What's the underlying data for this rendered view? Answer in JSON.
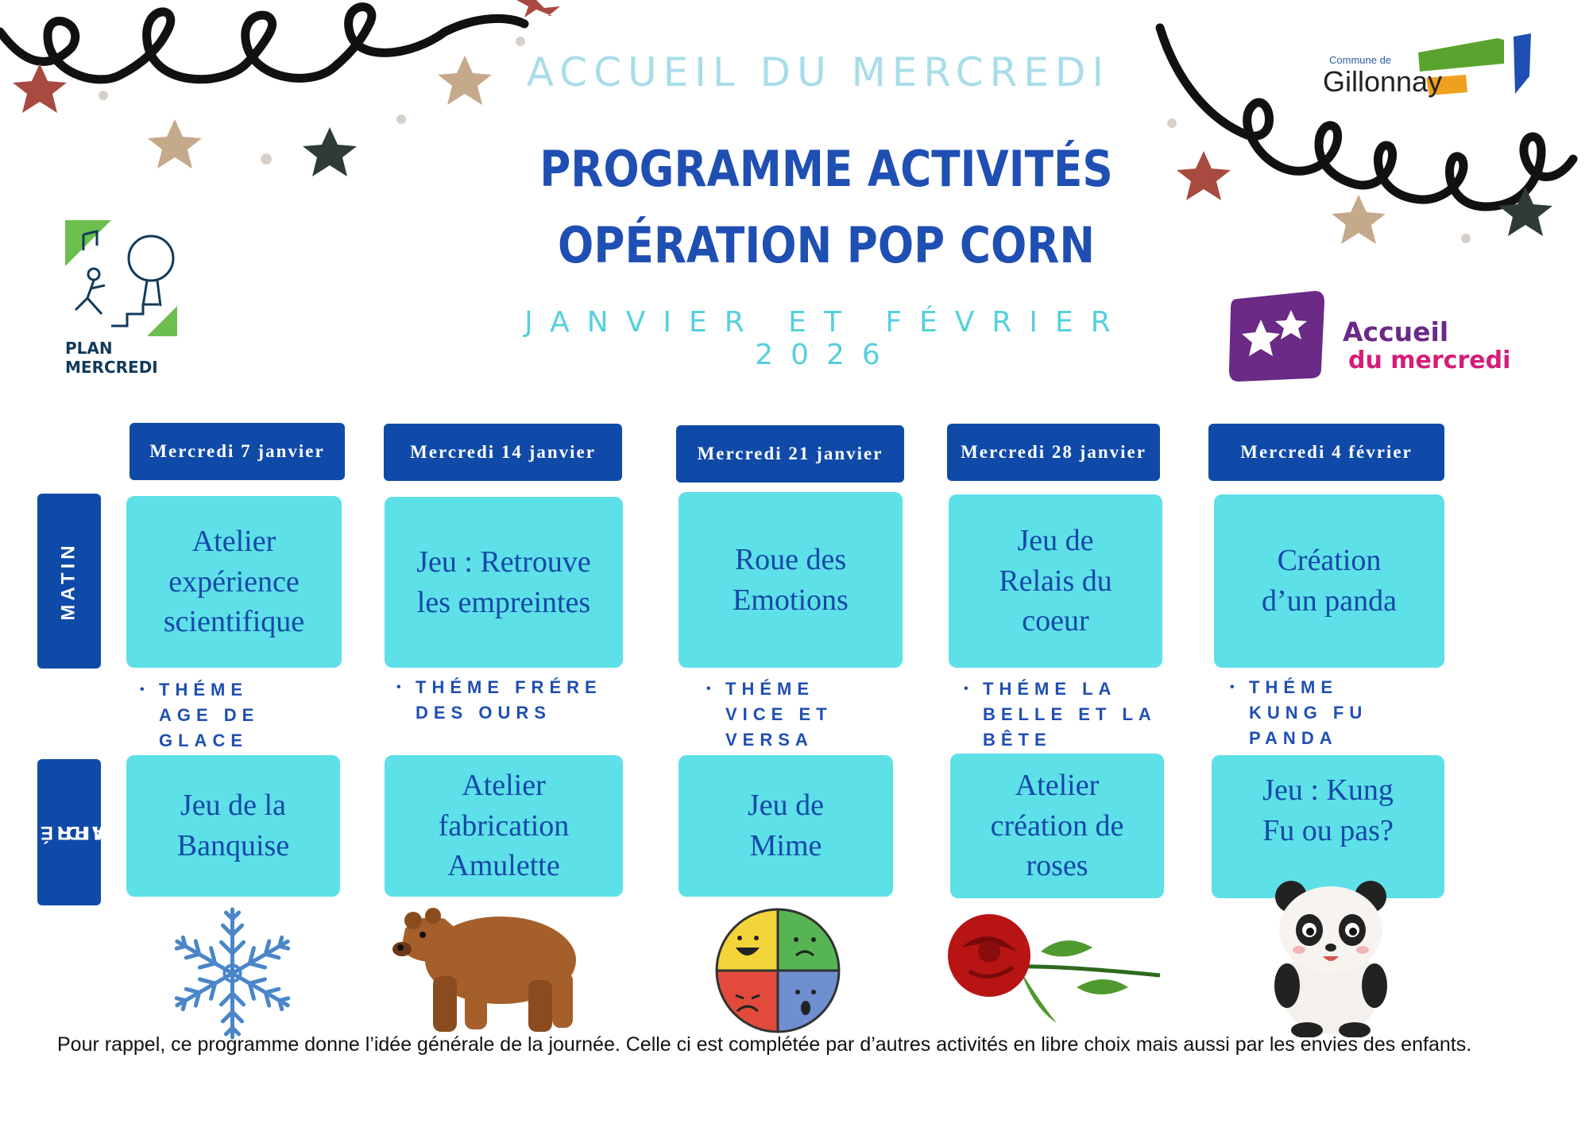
{
  "header": {
    "subtitle": "ACCUEIL DU MERCREDI",
    "title_line1": "PROGRAMME ACTIVITÉS",
    "title_line2": "OPÉRATION POP CORN",
    "dates": "JANVIER ET FÉVRIER 2026"
  },
  "logos": {
    "gillonnay_small": "Commune de",
    "gillonnay_name": "Gillonnay",
    "plan_line1": "PLAN",
    "plan_line2": "MERCREDI",
    "accueil_line1": "Accueil",
    "accueil_line2": "du mercredi"
  },
  "rows": {
    "morning": "MATIN",
    "afternoon_line1": "APRÉS-",
    "afternoon_line2": "MIDI"
  },
  "days": [
    {
      "label": "Mercredi 7 janvier",
      "morning": "Atelier expérience scientifique",
      "theme": "THÉME AGE DE GLACE",
      "afternoon": "Jeu de la Banquise",
      "icon": "snowflake-icon"
    },
    {
      "label": "Mercredi 14 janvier",
      "morning": "Jeu : Retrouve les empreintes",
      "theme": "THÉME FRÉRE DES OURS",
      "afternoon": "Atelier fabrication Amulette",
      "icon": "bear-icon"
    },
    {
      "label": "Mercredi 21 janvier",
      "morning": "Roue des Emotions",
      "theme": "THÉME VICE ET VERSA",
      "afternoon": "Jeu de Mime",
      "icon": "emotion-wheel-icon"
    },
    {
      "label": "Mercredi 28 janvier",
      "morning": "Jeu de Relais du coeur",
      "theme": "THÉME LA BELLE ET LA BÊTE",
      "afternoon": "Atelier création de roses",
      "icon": "rose-icon"
    },
    {
      "label": "Mercredi 4 février",
      "morning": "Création d’un panda",
      "theme": "THÉME KUNG FU PANDA",
      "afternoon": "Jeu : Kung Fu ou pas?",
      "icon": "panda-icon"
    }
  ],
  "footer": "Pour rappel, ce programme donne l’idée générale de la journée. Celle ci est complétée par d’autres activités en libre choix mais aussi par les envies des enfants.",
  "colors": {
    "header_blue": "#0f4aa9",
    "card_cyan": "#5de0e8",
    "title_blue": "#1f4fb3",
    "subtitle_cyan": "#a8dde9"
  }
}
